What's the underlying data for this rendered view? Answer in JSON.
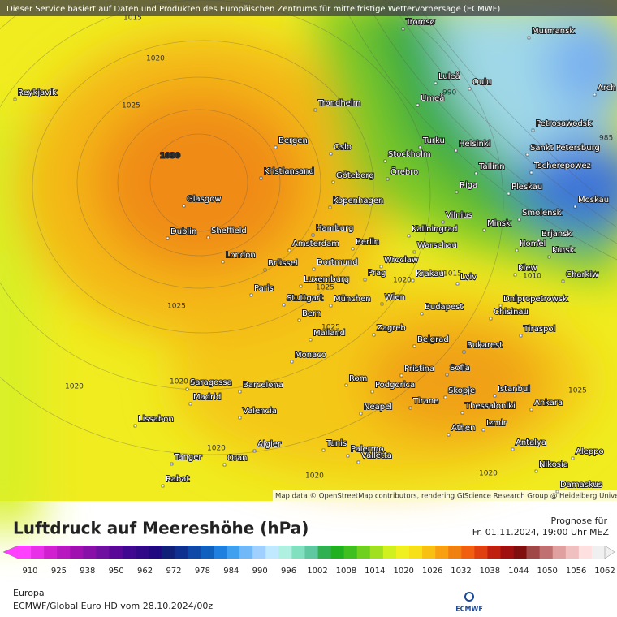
{
  "header": {
    "disclaimer": "Dieser Service basiert auf Daten und Produkten des Europäischen Zentrums für mittelfristige Wettervorhersage (ECMWF)"
  },
  "map": {
    "cities": [
      "Reykjavik",
      "Tromsø",
      "Murmansk",
      "Luleå",
      "Oulu",
      "Umeå",
      "Trondheim",
      "Arch",
      "Petrosawodsk",
      "Bergen",
      "Oslo",
      "Turku",
      "Helsinki",
      "Sankt Petersburg",
      "Stockholm",
      "Kristiansand",
      "Göteborg",
      "Örebro",
      "Tallinn",
      "Tscherepowez",
      "Riga",
      "Pleskau",
      "Glasgow",
      "Kopenhagen",
      "Moskau",
      "Vilnius",
      "Smolensk",
      "Minsk",
      "Dublin",
      "Sheffield",
      "Hamburg",
      "Kaliningrad",
      "Brjansk",
      "Amsterdam",
      "Berlin",
      "Warschau",
      "Homel",
      "Kursk",
      "London",
      "Brüssel",
      "Dortmund",
      "Wroclaw",
      "Prag",
      "Krakau",
      "Lviv",
      "Kiew",
      "Charkiw",
      "Paris",
      "Luxemburg",
      "Stuttgart",
      "München",
      "Wien",
      "Budapest",
      "Dnipropetrowsk",
      "Chisinau",
      "Bern",
      "Mailand",
      "Zagreb",
      "Tiraspol",
      "Belgrad",
      "Bukarest",
      "Monaco",
      "Sofia",
      "Pristina",
      "Rom",
      "Podgorica",
      "Saragossa",
      "Barcelona",
      "Istanbul",
      "Skopje",
      "Madrid",
      "Tirane",
      "Ankara",
      "Thessaloniki",
      "Neapel",
      "Valencia",
      "Lissabon",
      "Izmir",
      "Athen",
      "Palermo",
      "Algier",
      "Tunis",
      "Antalya",
      "Aleppo",
      "Valletta",
      "Tanger",
      "Oran",
      "Nikosia",
      "Rabat",
      "Damaskus"
    ],
    "isobar_labels": [
      1015,
      1020,
      1025,
      1030,
      1025,
      1020,
      1020,
      1025,
      1020,
      1015,
      1010,
      990,
      985,
      1025,
      1020,
      1020,
      1020,
      1025
    ],
    "attribution": "Map data © OpenStreetMap contributors, rendering GIScience Research Group @ Heidelberg University"
  },
  "footer": {
    "title": "Luftdruck auf Meereshöhe (hPa)",
    "forecast_label": "Prognose für",
    "forecast_time": "Fr. 01.11.2024, 19:00 Uhr MEZ",
    "region": "Europa",
    "model_run": "ECMWF/Global Euro HD vom  28.10.2024/00z",
    "logo": "ECMWF"
  },
  "colorbar": {
    "ticks": [
      910,
      925,
      938,
      950,
      962,
      972,
      978,
      984,
      990,
      996,
      1002,
      1008,
      1014,
      1020,
      1026,
      1032,
      1038,
      1044,
      1050,
      1056,
      1062
    ],
    "colors": [
      "#ff40ff",
      "#e830e8",
      "#d020d0",
      "#b818c0",
      "#a010b0",
      "#8810a8",
      "#7010a0",
      "#5a0898",
      "#400890",
      "#300888",
      "#200880",
      "#102078",
      "#103090",
      "#1048a8",
      "#1060c0",
      "#2080e0",
      "#40a0f0",
      "#70b8f8",
      "#a0d0ff",
      "#c0e8ff",
      "#b0f0e0",
      "#80e0c0",
      "#60c8a0",
      "#30b050",
      "#20b020",
      "#40c020",
      "#70d020",
      "#a0e020",
      "#d0f020",
      "#f0f020",
      "#f8e018",
      "#f8c010",
      "#f8a010",
      "#f08010",
      "#f06010",
      "#e04010",
      "#c02010",
      "#a01010",
      "#801010",
      "#a04848",
      "#c07070",
      "#e0a0a0",
      "#f0c0c0",
      "#ffe0e0",
      "#f0f0f0"
    ]
  }
}
